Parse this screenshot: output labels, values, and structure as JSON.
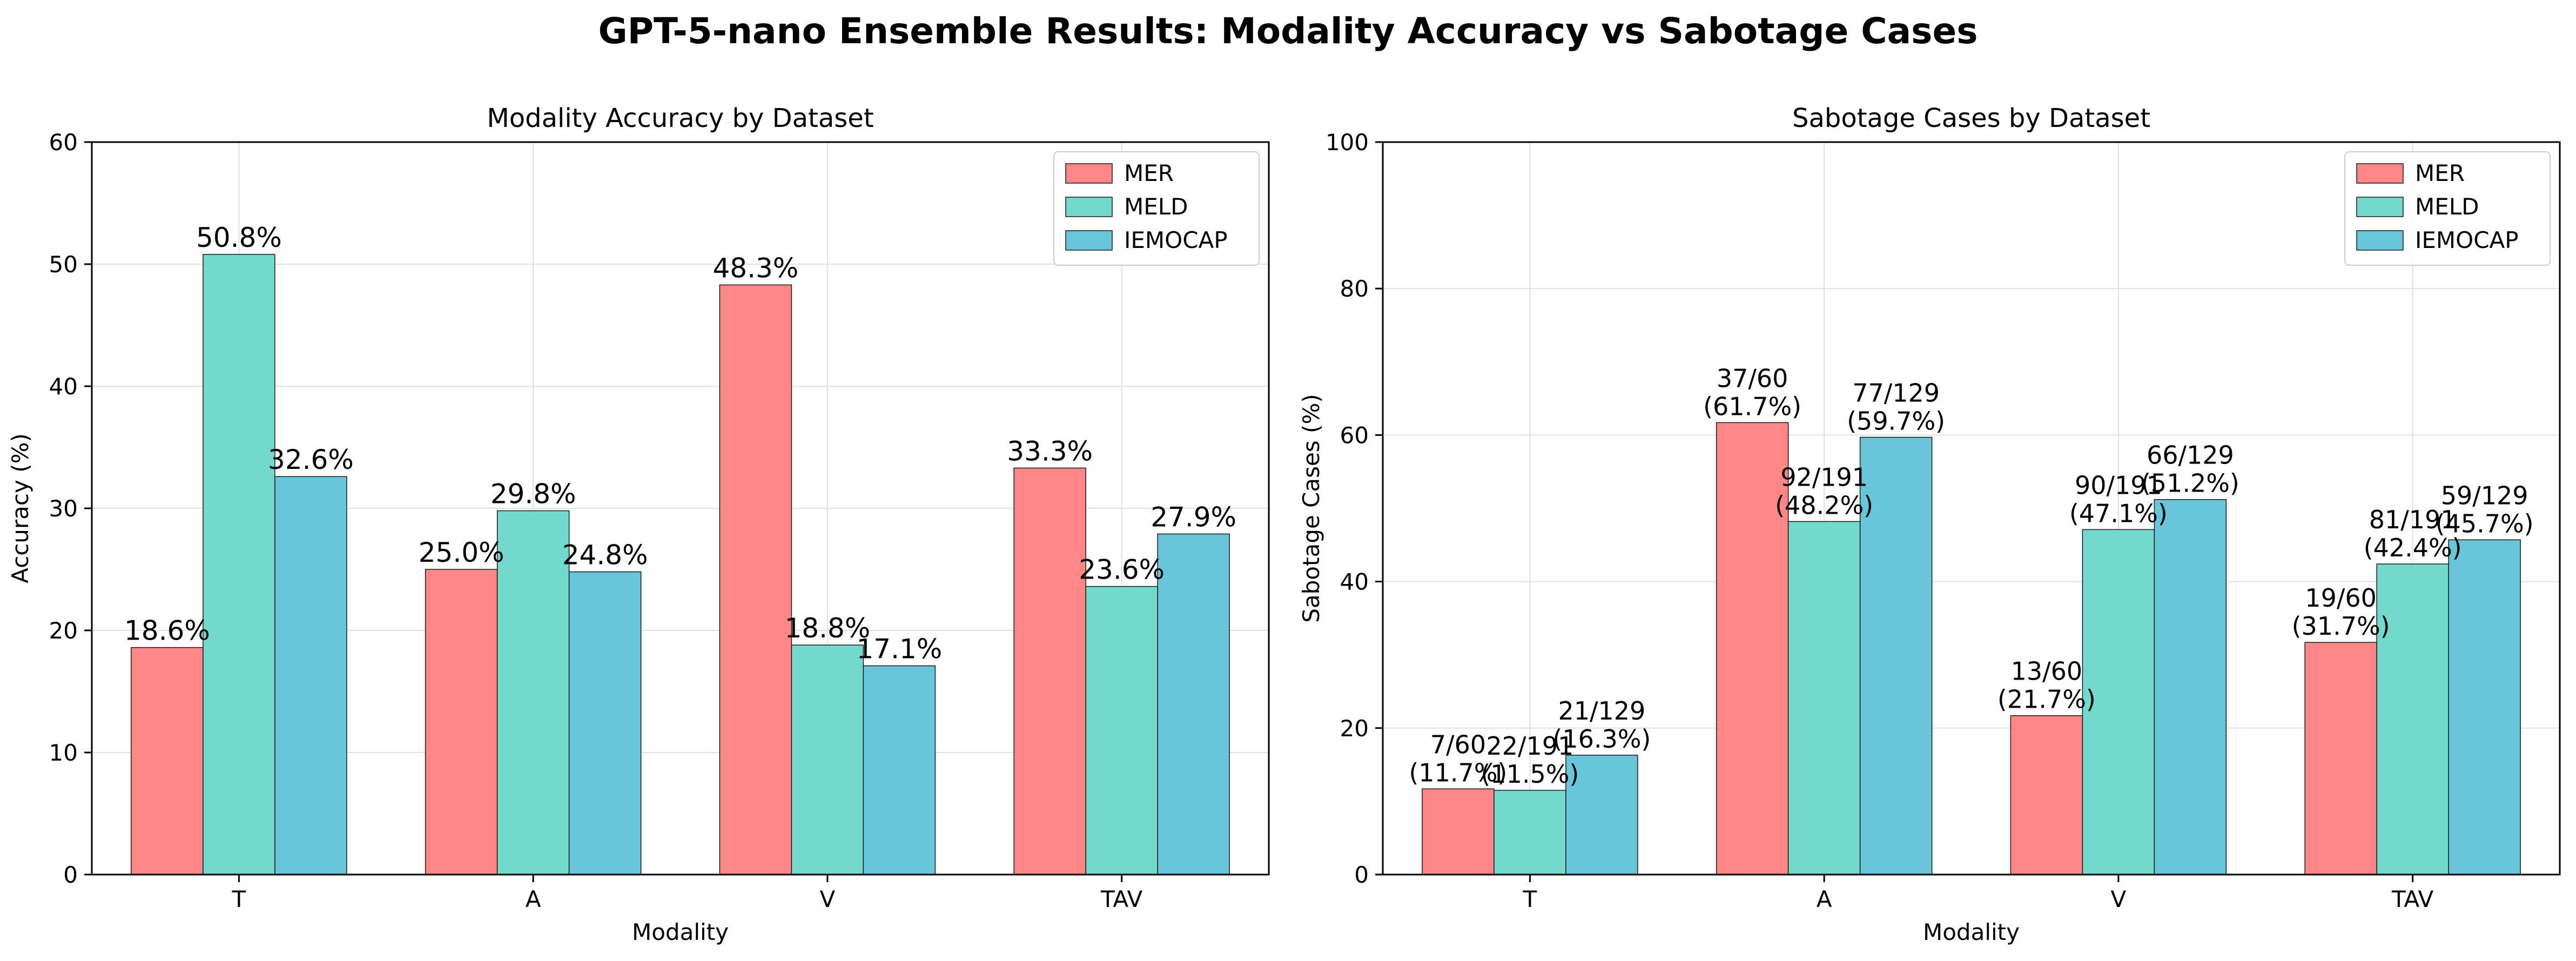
{
  "suptitle": "GPT-5-nano Ensemble Results: Modality Accuracy vs Sabotage Cases",
  "colors": {
    "MER": "#ff8787",
    "MELD": "#73d9cd",
    "IEMOCAP": "#69c5d9",
    "edge": "#1a1a1a",
    "grid": "#e0e0e0"
  },
  "chart_data": [
    {
      "type": "bar",
      "title": "Modality Accuracy by Dataset",
      "xlabel": "Modality",
      "ylabel": "Accuracy (%)",
      "categories": [
        "T",
        "A",
        "V",
        "TAV"
      ],
      "ylim": [
        0,
        60
      ],
      "yticks": [
        "0",
        "10",
        "20",
        "30",
        "40",
        "50",
        "60"
      ],
      "grid": true,
      "legend_position": "top-right",
      "series": [
        {
          "name": "MER",
          "values": [
            18.6,
            25.0,
            48.3,
            33.3
          ],
          "labels": [
            "18.6%",
            "25.0%",
            "48.3%",
            "33.3%"
          ]
        },
        {
          "name": "MELD",
          "values": [
            50.8,
            29.8,
            18.8,
            23.6
          ],
          "labels": [
            "50.8%",
            "29.8%",
            "18.8%",
            "23.6%"
          ]
        },
        {
          "name": "IEMOCAP",
          "values": [
            32.6,
            24.8,
            17.1,
            27.9
          ],
          "labels": [
            "32.6%",
            "24.8%",
            "17.1%",
            "27.9%"
          ]
        }
      ]
    },
    {
      "type": "bar",
      "title": "Sabotage Cases by Dataset",
      "xlabel": "Modality",
      "ylabel": "Sabotage Cases (%)",
      "categories": [
        "T",
        "A",
        "V",
        "TAV"
      ],
      "ylim": [
        0,
        100
      ],
      "yticks": [
        "0",
        "20",
        "40",
        "60",
        "80",
        "100"
      ],
      "grid": true,
      "legend_position": "top-right",
      "series": [
        {
          "name": "MER",
          "values": [
            11.7,
            61.7,
            21.7,
            31.7
          ],
          "labels": [
            "7/60\n(11.7%)",
            "37/60\n(61.7%)",
            "13/60\n(21.7%)",
            "19/60\n(31.7%)"
          ]
        },
        {
          "name": "MELD",
          "values": [
            11.5,
            48.2,
            47.1,
            42.4
          ],
          "labels": [
            "22/191\n(11.5%)",
            "92/191\n(48.2%)",
            "90/191\n(47.1%)",
            "81/191\n(42.4%)"
          ]
        },
        {
          "name": "IEMOCAP",
          "values": [
            16.3,
            59.7,
            51.2,
            45.7
          ],
          "labels": [
            "21/129\n(16.3%)",
            "77/129\n(59.7%)",
            "66/129\n(51.2%)",
            "59/129\n(45.7%)"
          ]
        }
      ]
    }
  ]
}
